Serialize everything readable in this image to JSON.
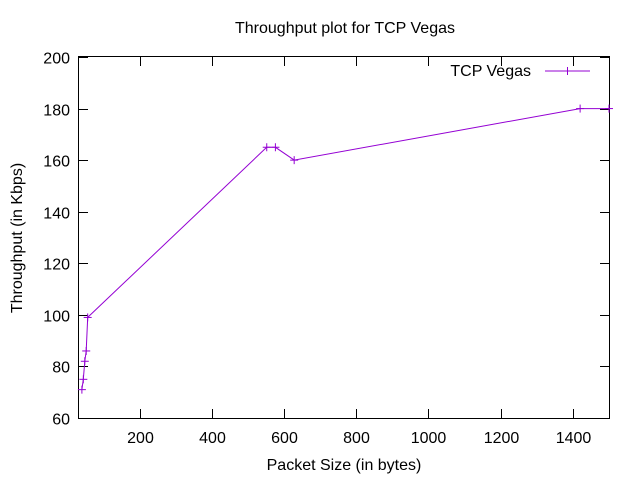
{
  "chart_data": {
    "type": "line",
    "title": "Throughput plot for TCP Vegas",
    "xlabel": "Packet Size (in bytes)",
    "ylabel": "Throughput (in Kbps)",
    "xlim": [
      32,
      1500
    ],
    "ylim": [
      60,
      200
    ],
    "xticks": [
      200,
      400,
      600,
      800,
      1000,
      1200,
      1400
    ],
    "yticks": [
      60,
      80,
      100,
      120,
      140,
      160,
      180,
      200
    ],
    "grid": false,
    "legend_position": "top-right",
    "series": [
      {
        "name": "TCP Vegas",
        "color": "#9400d3",
        "marker": "plus",
        "x": [
          40,
          44,
          48,
          52,
          56,
          552,
          576,
          628,
          1420,
          1500
        ],
        "y": [
          71,
          75,
          82,
          86,
          99,
          165,
          165,
          160,
          180,
          180
        ]
      }
    ]
  }
}
